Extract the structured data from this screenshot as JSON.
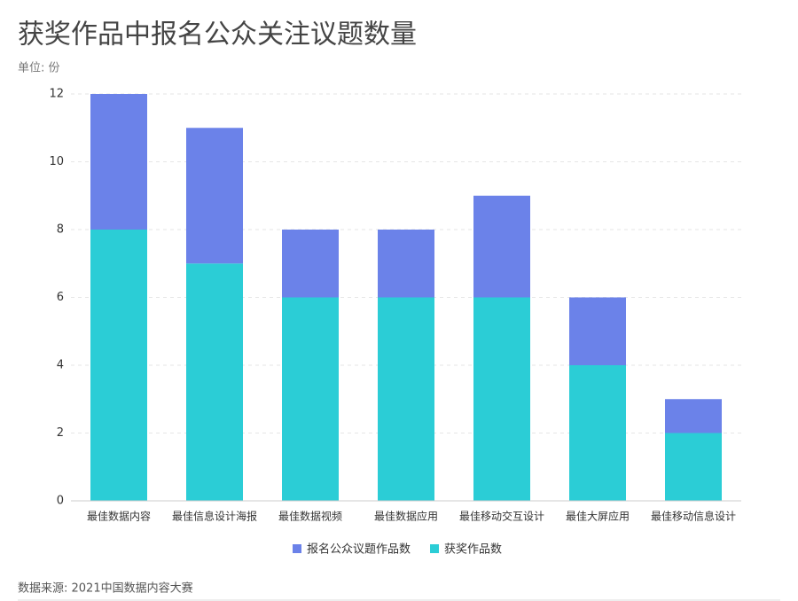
{
  "chart_data": {
    "type": "stacked_bar",
    "title": "获奖作品中报名公众关注议题数量",
    "unit_label": "单位: 份",
    "source": "数据来源: 2021中国数据内容大赛",
    "categories": [
      "最佳数据内容",
      "最佳信息设计海报",
      "最佳数据视频",
      "最佳数据应用",
      "最佳移动交互设计",
      "最佳大屏应用",
      "最佳移动信息设计"
    ],
    "series": [
      {
        "name": "报名公众议题作品数",
        "color": "#6b82e9",
        "values": [
          4,
          4,
          2,
          2,
          3,
          2,
          1
        ]
      },
      {
        "name": "获奖作品数",
        "color": "#2bcdd6",
        "values": [
          8,
          7,
          6,
          6,
          6,
          4,
          2
        ]
      }
    ],
    "ylim": [
      0,
      12
    ],
    "yticks": [
      0,
      2,
      4,
      6,
      8,
      10,
      12
    ],
    "grid": true
  }
}
